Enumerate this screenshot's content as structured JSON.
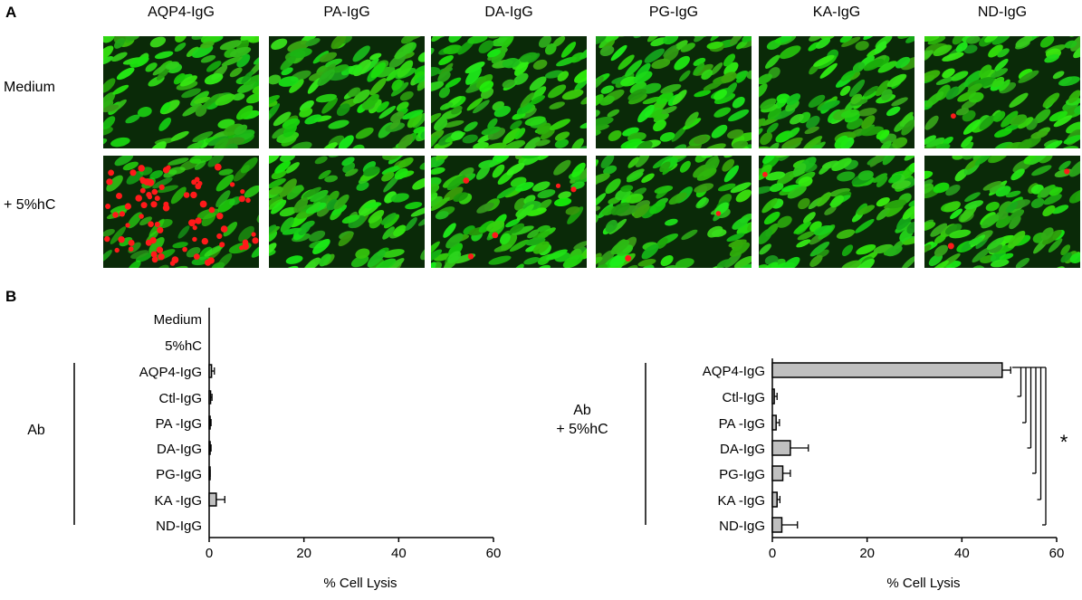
{
  "panelA": {
    "letter": "A",
    "columns": [
      "AQP4-IgG",
      "PA-IgG",
      "DA-IgG",
      "PG-IgG",
      "KA-IgG",
      "ND-IgG"
    ],
    "rows": [
      "Medium",
      "+ 5%hC"
    ],
    "colors": {
      "live_cell": "#2ecc1a",
      "background": "#0a2a08",
      "dead_cell": "#ff1a1a"
    },
    "dead_cell_level": [
      [
        0.0,
        0.0,
        0.0,
        0.0,
        0.0,
        0.01
      ],
      [
        0.85,
        0.0,
        0.05,
        0.02,
        0.01,
        0.02
      ]
    ]
  },
  "panelB": {
    "letter": "B",
    "left_group_label": "Ab",
    "right_group_label_line1": "Ab",
    "right_group_label_line2": "+ 5%hC",
    "significance": "*",
    "bar_color": "#c0c0c0"
  },
  "chart_data": [
    {
      "type": "bar",
      "orientation": "horizontal",
      "categories": [
        "Medium",
        "5%hC",
        "AQP4-IgG",
        "Ctl-IgG",
        "PA -IgG",
        "DA-IgG",
        "PG-IgG",
        "KA -IgG",
        "ND-IgG"
      ],
      "values": [
        0,
        0,
        0.5,
        0.3,
        0.2,
        0.2,
        0.1,
        1.5,
        0
      ],
      "errors": [
        0,
        0,
        0.6,
        0.3,
        0.2,
        0.2,
        0.1,
        1.8,
        0
      ],
      "xlabel": "% Cell Lysis",
      "xlim": [
        0,
        60
      ],
      "xticks": [
        "0",
        "20",
        "40",
        "60"
      ]
    },
    {
      "type": "bar",
      "orientation": "horizontal",
      "categories": [
        "AQP4-IgG",
        "Ctl-IgG",
        "PA -IgG",
        "DA-IgG",
        "PG-IgG",
        "KA -IgG",
        "ND-IgG"
      ],
      "values": [
        48.5,
        0.4,
        0.8,
        3.8,
        2.2,
        1.0,
        2.0
      ],
      "errors": [
        1.8,
        0.6,
        0.7,
        3.8,
        1.6,
        0.6,
        3.3
      ],
      "xlabel": "% Cell Lysis",
      "xlim": [
        0,
        60
      ],
      "xticks": [
        "0",
        "20",
        "40",
        "60"
      ]
    }
  ]
}
